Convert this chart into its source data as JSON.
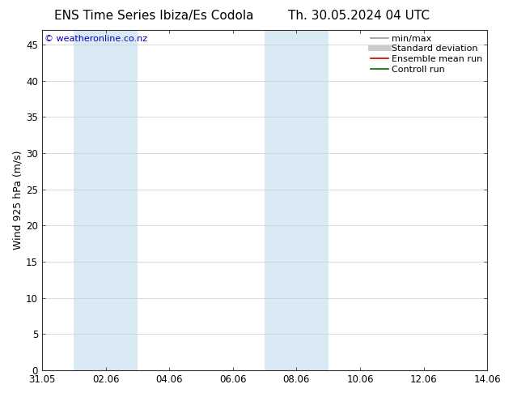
{
  "title_left": "ENS Time Series Ibiza/Es Codola",
  "title_right": "Th. 30.05.2024 04 UTC",
  "ylabel": "Wind 925 hPa (m/s)",
  "watermark": "© weatheronline.co.nz",
  "ylim": [
    0,
    47
  ],
  "yticks": [
    0,
    5,
    10,
    15,
    20,
    25,
    30,
    35,
    40,
    45
  ],
  "xtick_labels": [
    "31.05",
    "02.06",
    "04.06",
    "06.06",
    "08.06",
    "10.06",
    "12.06",
    "14.06"
  ],
  "xtick_positions": [
    0,
    2,
    4,
    6,
    8,
    10,
    12,
    14
  ],
  "xlim": [
    0,
    14
  ],
  "shaded_bands": [
    {
      "x_start": 1,
      "x_end": 3
    },
    {
      "x_start": 7,
      "x_end": 9
    }
  ],
  "shaded_color": "#daeaf5",
  "background_color": "#ffffff",
  "grid_color": "#cccccc",
  "watermark_color": "#0000bb",
  "legend_entries": [
    {
      "label": "min/max",
      "color": "#999999",
      "lw": 1.2
    },
    {
      "label": "Standard deviation",
      "color": "#cccccc",
      "lw": 5
    },
    {
      "label": "Ensemble mean run",
      "color": "#cc0000",
      "lw": 1.2
    },
    {
      "label": "Controll run",
      "color": "#006600",
      "lw": 1.2
    }
  ],
  "title_fontsize": 11,
  "ylabel_fontsize": 9,
  "tick_fontsize": 8.5,
  "legend_fontsize": 8,
  "watermark_fontsize": 8
}
